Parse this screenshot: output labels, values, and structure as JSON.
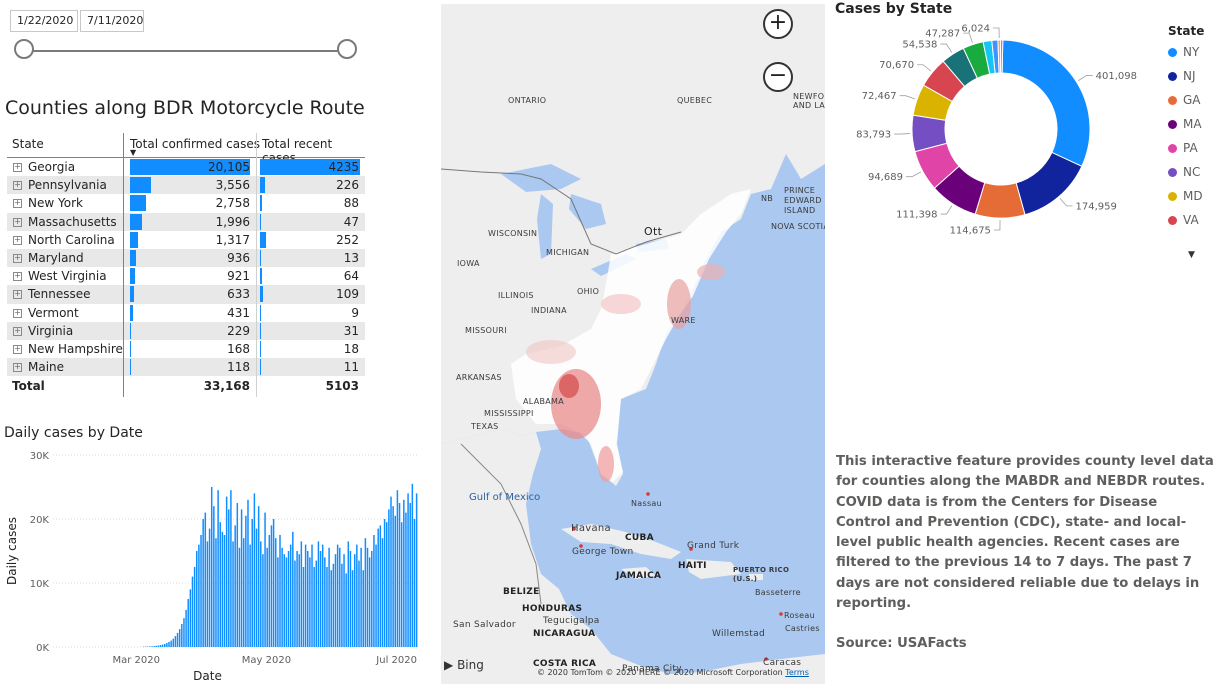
{
  "slicer": {
    "start_date": "1/22/2020",
    "end_date": "7/11/2020"
  },
  "table": {
    "title": "Counties along BDR Motorcycle Route",
    "headers": [
      "State",
      "Total confirmed cases",
      "Total recent cases"
    ],
    "rows": [
      {
        "state": "Georgia",
        "confirmed": "20,105",
        "recent": "4235"
      },
      {
        "state": "Pennsylvania",
        "confirmed": "3,556",
        "recent": "226"
      },
      {
        "state": "New York",
        "confirmed": "2,758",
        "recent": "88"
      },
      {
        "state": "Massachusetts",
        "confirmed": "1,996",
        "recent": "47"
      },
      {
        "state": "North Carolina",
        "confirmed": "1,317",
        "recent": "252"
      },
      {
        "state": "Maryland",
        "confirmed": "936",
        "recent": "13"
      },
      {
        "state": "West Virginia",
        "confirmed": "921",
        "recent": "64"
      },
      {
        "state": "Tennessee",
        "confirmed": "633",
        "recent": "109"
      },
      {
        "state": "Vermont",
        "confirmed": "431",
        "recent": "9"
      },
      {
        "state": "Virginia",
        "confirmed": "229",
        "recent": "31"
      },
      {
        "state": "New Hampshire",
        "confirmed": "168",
        "recent": "18"
      },
      {
        "state": "Maine",
        "confirmed": "118",
        "recent": "11"
      }
    ],
    "total": {
      "label": "Total",
      "confirmed": "33,168",
      "recent": "5103"
    },
    "bar_color": "#118dff"
  },
  "map": {
    "labels": {
      "ontario": "ONTARIO",
      "quebec": "QUEBEC",
      "newfoundland": "NEWFO\nAND LA",
      "prince_edward": "PRINCE\nEDWARD\nISLAND",
      "nb": "NB",
      "nova_scotia": "NOVA SCOTIA",
      "ottawa": "Ott",
      "wisconsin": "WISCONSIN",
      "michigan": "MICHIGAN",
      "iowa": "IOWA",
      "illinois": "ILLINOIS",
      "ohio": "OHIO",
      "indiana": "INDIANA",
      "missouri": "MISSOURI",
      "delaware": "WARE",
      "arkansas": "ARKANSAS",
      "alabama": "ALABAMA",
      "mississippi": "MISSISSIPPI",
      "texas": "TEXAS",
      "gulf": "Gulf of Mexico",
      "nassau": "Nassau",
      "havana": "Havana",
      "cuba": "CUBA",
      "grand_turk": "Grand Turk",
      "george_town": "George Town",
      "jamaica": "JAMAICA",
      "haiti": "HAITI",
      "puerto_rico": "PUERTO RICO\n(U.S.)",
      "basseterre": "Basseterre",
      "belize": "BELIZE",
      "honduras": "HONDURAS",
      "tegucigalpa": "Tegucigalpa",
      "san_salvador": "San Salvador",
      "nicaragua": "NICARAGUA",
      "willemstad": "Willemstad",
      "roseau": "Roseau",
      "castries": "Castries",
      "costa_rica": "COSTA RICA",
      "panama": "Panama City",
      "caracas": "Caracas"
    },
    "zoom_in": "+",
    "zoom_out": "−",
    "brand": "Bing",
    "copyright": "© 2020 TomTom © 2020 HERE © 2020 Microsoft Corporation",
    "terms": "Terms"
  },
  "donut": {
    "title": "Cases by State",
    "legend_title": "State",
    "legend": [
      {
        "code": "NY",
        "color": "#118dff"
      },
      {
        "code": "NJ",
        "color": "#12239e"
      },
      {
        "code": "GA",
        "color": "#e66c37"
      },
      {
        "code": "MA",
        "color": "#6b007b"
      },
      {
        "code": "PA",
        "color": "#e044a7"
      },
      {
        "code": "NC",
        "color": "#744ec2"
      },
      {
        "code": "MD",
        "color": "#d9b300"
      },
      {
        "code": "VA",
        "color": "#d64550"
      }
    ],
    "more_icon": "chevron-down-icon",
    "slices": [
      {
        "label": "401,098",
        "value": 401098,
        "color": "#118dff"
      },
      {
        "label": "174,959",
        "value": 174959,
        "color": "#12239e"
      },
      {
        "label": "114,675",
        "value": 114675,
        "color": "#e66c37"
      },
      {
        "label": "111,398",
        "value": 111398,
        "color": "#6b007b"
      },
      {
        "label": "94,689",
        "value": 94689,
        "color": "#e044a7"
      },
      {
        "label": "83,793",
        "value": 83793,
        "color": "#744ec2"
      },
      {
        "label": "72,467",
        "value": 72467,
        "color": "#d9b300"
      },
      {
        "label": "70,670",
        "value": 70670,
        "color": "#d64550"
      },
      {
        "label": "54,538",
        "value": 54538,
        "color": "#197278"
      },
      {
        "label": "47,287",
        "value": 47287,
        "color": "#1aab40"
      },
      {
        "label": "",
        "value": 20000,
        "color": "#15c6f4"
      },
      {
        "label": "",
        "value": 14000,
        "color": "#4092ff"
      },
      {
        "label": "6,024",
        "value": 6024,
        "color": "#ffa058"
      },
      {
        "label": "",
        "value": 5000,
        "color": "#be5dc9"
      }
    ]
  },
  "description": {
    "text": "This interactive feature provides county level data for counties along the MABDR and NEBDR routes.  COVID data is from the Centers for Disease Control and Prevention (CDC), state- and local-level public health agencies.  Recent cases are filtered to the previous 14 to 7 days.  The past 7 days are not considered reliable due to delays in reporting.",
    "source": "Source: USAFacts"
  },
  "chart_data": {
    "type": "bar",
    "title": "Daily cases by Date",
    "xlabel": "Date",
    "ylabel": "Daily cases",
    "ylim": [
      0,
      30000
    ],
    "yticks": [
      "0K",
      "10K",
      "20K",
      "30K"
    ],
    "xticks": [
      "Mar 2020",
      "May 2020",
      "Jul 2020"
    ],
    "start_date": "2020-01-22",
    "bar_color": "#118dff",
    "values": [
      0,
      0,
      0,
      0,
      0,
      0,
      0,
      0,
      0,
      0,
      0,
      0,
      0,
      0,
      0,
      0,
      0,
      0,
      0,
      0,
      0,
      0,
      0,
      0,
      0,
      0,
      0,
      0,
      0,
      0,
      0,
      0,
      0,
      0,
      0,
      0,
      0,
      0,
      0,
      0,
      0,
      0,
      50,
      60,
      70,
      90,
      110,
      140,
      180,
      230,
      300,
      380,
      480,
      620,
      800,
      1000,
      1300,
      1700,
      2200,
      2800,
      3600,
      4500,
      5800,
      7500,
      9000,
      11000,
      12500,
      15000,
      16000,
      17500,
      20000,
      21000,
      16500,
      18500,
      25000,
      22000,
      17000,
      24500,
      19500,
      18000,
      17500,
      23500,
      21500,
      24500,
      16500,
      19000,
      22500,
      15500,
      21500,
      17000,
      20500,
      23000,
      16000,
      20000,
      24000,
      18500,
      22000,
      16500,
      14500,
      21000,
      15500,
      17500,
      19000,
      20000,
      17000,
      14000,
      17500,
      15500,
      14500,
      14000,
      15000,
      16000,
      18000,
      13500,
      15000,
      14500,
      16500,
      12500,
      16000,
      15000,
      14000,
      16000,
      12500,
      13500,
      16500,
      15000,
      16000,
      14000,
      12500,
      15500,
      12000,
      13000,
      14500,
      16000,
      15500,
      13000,
      14500,
      11500,
      16500,
      15000,
      12000,
      14500,
      16000,
      13500,
      15500,
      12000,
      17000,
      15500,
      14000,
      15000,
      17500,
      16000,
      18500,
      19000,
      17000,
      20000,
      19500,
      21500,
      23500,
      22000,
      20500,
      24500,
      22500,
      19500,
      23000,
      21000,
      24000,
      22500,
      25500,
      20000,
      24000
    ]
  }
}
